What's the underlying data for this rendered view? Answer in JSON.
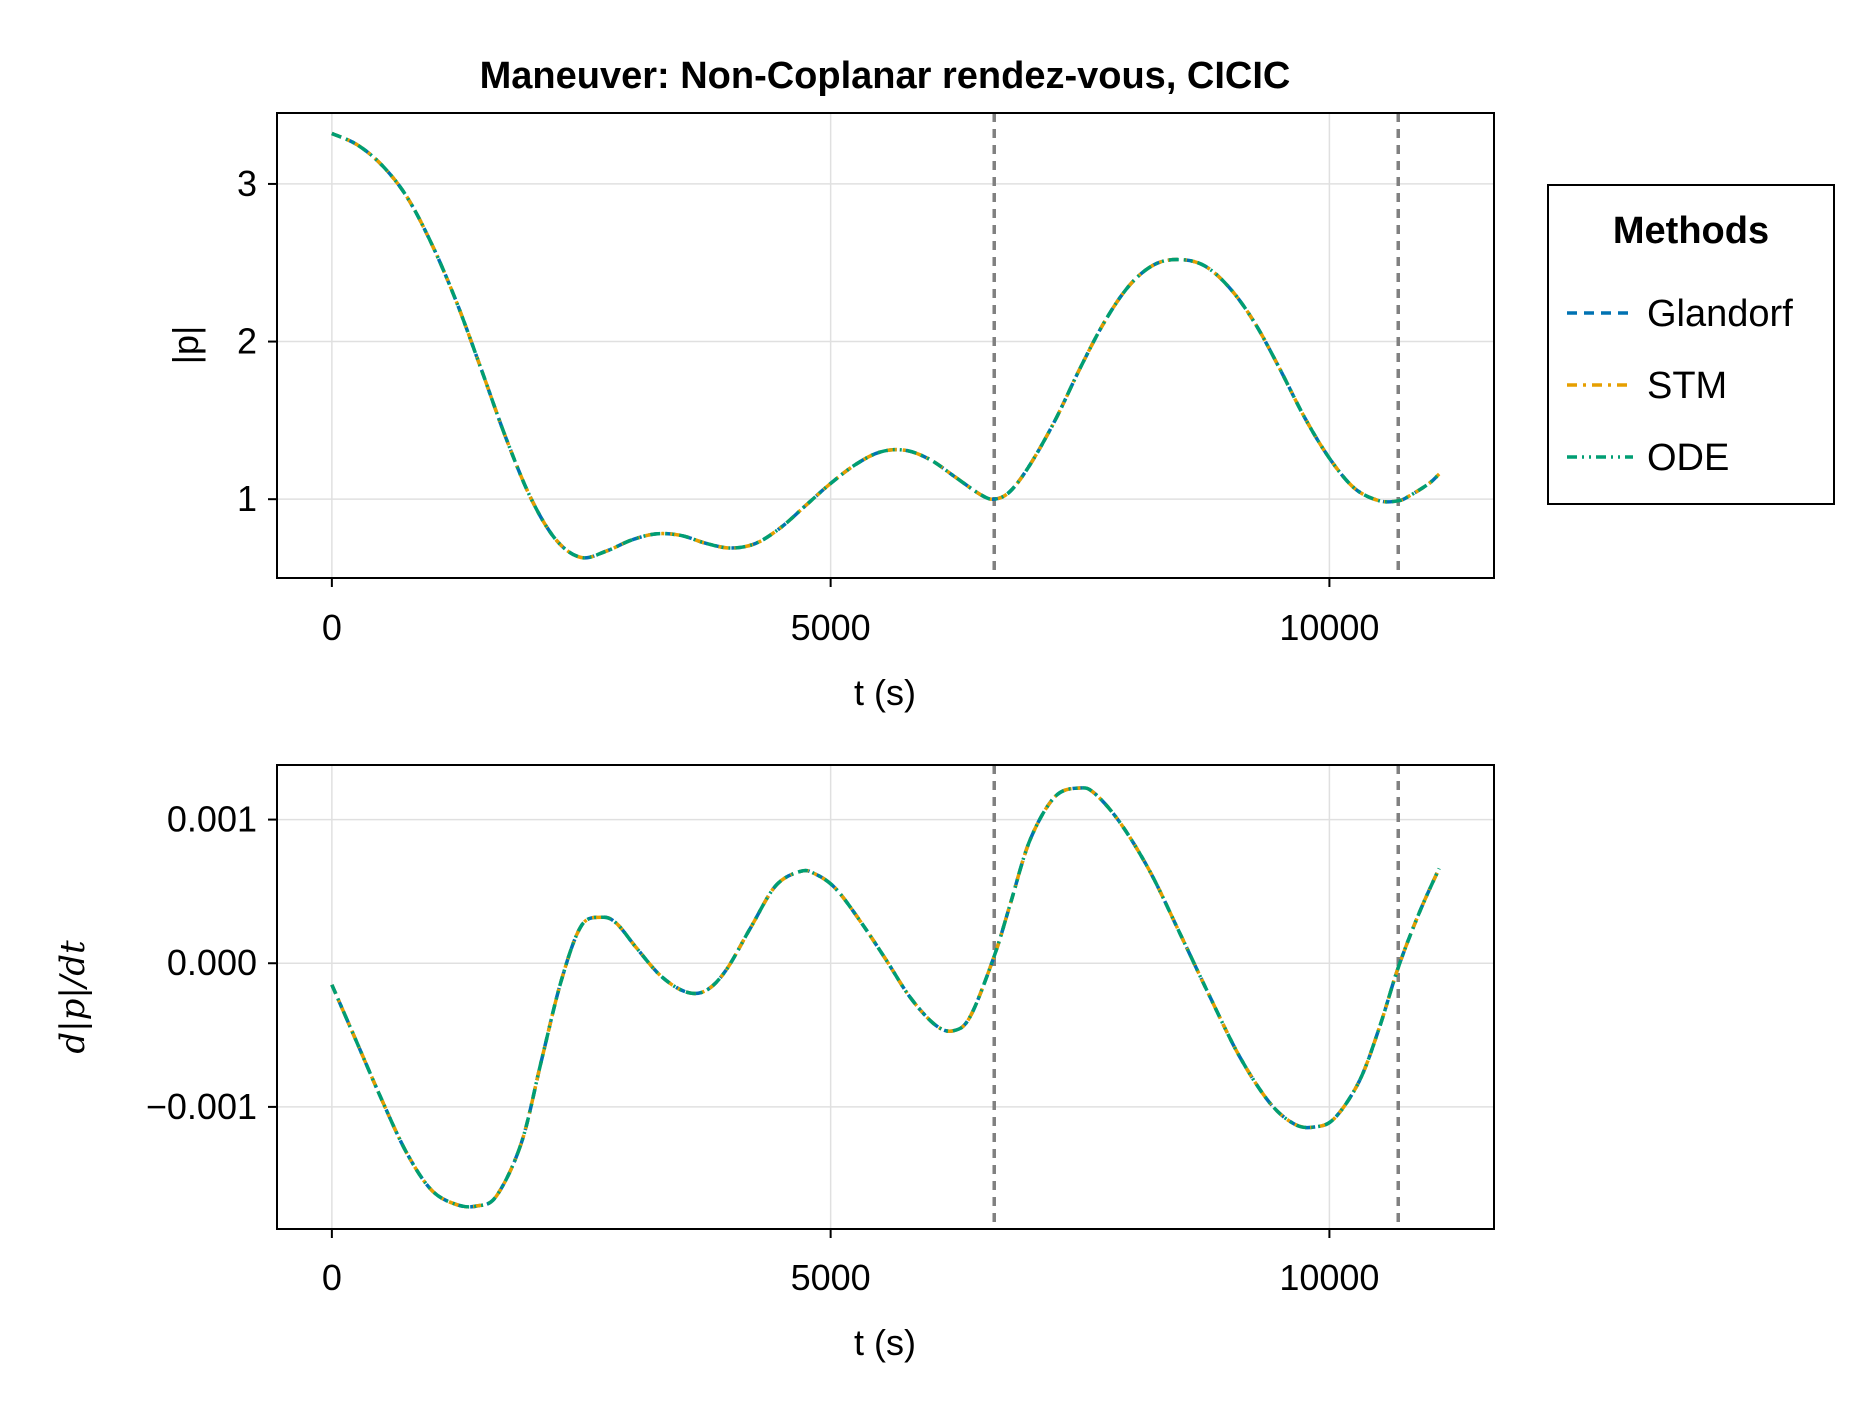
{
  "chart_data": [
    {
      "type": "line",
      "title": "Maneuver: Non-Coplanar rendez-vous, CICIC",
      "xlabel": "t (s)",
      "ylabel": "|p|",
      "xlim": [
        -550,
        11650
      ],
      "ylim": [
        0.5,
        3.45
      ],
      "xticks": [
        0,
        5000,
        10000
      ],
      "xtick_labels": [
        "0",
        "5000",
        "10000"
      ],
      "yticks": [
        1,
        2,
        3
      ],
      "ytick_labels": [
        "1",
        "2",
        "3"
      ],
      "grid": true,
      "vlines": [
        6640,
        10690
      ],
      "x": [
        0,
        250,
        500,
        750,
        1000,
        1250,
        1500,
        1750,
        2000,
        2250,
        2500,
        2750,
        3000,
        3250,
        3500,
        3750,
        4000,
        4250,
        4500,
        4750,
        5000,
        5250,
        5500,
        5750,
        6000,
        6250,
        6500,
        6640,
        6800,
        7000,
        7250,
        7500,
        7750,
        8000,
        8250,
        8500,
        8750,
        9000,
        9250,
        9500,
        9750,
        10000,
        10250,
        10500,
        10690,
        10800,
        11000,
        11100
      ],
      "series": [
        {
          "name": "Glandorf",
          "color": "#0072b2",
          "dash": "10,7",
          "values": [
            3.32,
            3.25,
            3.12,
            2.92,
            2.62,
            2.25,
            1.82,
            1.38,
            1.0,
            0.74,
            0.63,
            0.67,
            0.74,
            0.78,
            0.77,
            0.72,
            0.69,
            0.72,
            0.82,
            0.96,
            1.1,
            1.22,
            1.3,
            1.31,
            1.25,
            1.14,
            1.03,
            1.0,
            1.05,
            1.22,
            1.5,
            1.83,
            2.13,
            2.36,
            2.49,
            2.52,
            2.48,
            2.34,
            2.12,
            1.83,
            1.52,
            1.26,
            1.07,
            0.99,
            0.99,
            1.02,
            1.1,
            1.16
          ]
        },
        {
          "name": "STM",
          "color": "#e69f00",
          "dash": "10,6,3,6",
          "values": [
            3.32,
            3.25,
            3.12,
            2.92,
            2.62,
            2.25,
            1.82,
            1.38,
            1.0,
            0.74,
            0.63,
            0.67,
            0.74,
            0.78,
            0.77,
            0.72,
            0.69,
            0.72,
            0.82,
            0.96,
            1.1,
            1.22,
            1.3,
            1.31,
            1.25,
            1.14,
            1.03,
            1.0,
            1.05,
            1.22,
            1.5,
            1.83,
            2.13,
            2.36,
            2.49,
            2.52,
            2.48,
            2.34,
            2.12,
            1.83,
            1.52,
            1.26,
            1.07,
            0.99,
            0.99,
            1.02,
            1.1,
            1.16
          ]
        },
        {
          "name": "ODE",
          "color": "#009e73",
          "dash": "10,5,2,5,2,5",
          "values": [
            3.32,
            3.25,
            3.12,
            2.92,
            2.62,
            2.25,
            1.82,
            1.38,
            1.0,
            0.74,
            0.63,
            0.67,
            0.74,
            0.78,
            0.77,
            0.72,
            0.69,
            0.72,
            0.82,
            0.96,
            1.1,
            1.22,
            1.3,
            1.31,
            1.25,
            1.14,
            1.03,
            1.0,
            1.05,
            1.22,
            1.5,
            1.83,
            2.13,
            2.36,
            2.49,
            2.52,
            2.48,
            2.34,
            2.12,
            1.83,
            1.52,
            1.26,
            1.07,
            0.99,
            0.99,
            1.02,
            1.1,
            1.16
          ]
        }
      ],
      "legend": {
        "title": "Methods",
        "position": "right",
        "entries": [
          "Glandorf",
          "STM",
          "ODE"
        ]
      }
    },
    {
      "type": "line",
      "title": "",
      "xlabel": "t (s)",
      "ylabel": "d|p|/dt",
      "xlim": [
        -550,
        11650
      ],
      "ylim": [
        -0.00185,
        0.00138
      ],
      "xticks": [
        0,
        5000,
        10000
      ],
      "xtick_labels": [
        "0",
        "5000",
        "10000"
      ],
      "yticks": [
        0.001,
        0.0,
        -0.001
      ],
      "ytick_labels": [
        "0.001",
        "0.000",
        "−0.001"
      ],
      "grid": true,
      "vlines": [
        6640,
        10690
      ],
      "x": [
        0,
        250,
        500,
        750,
        1000,
        1250,
        1450,
        1650,
        1900,
        2100,
        2300,
        2500,
        2700,
        2850,
        3050,
        3300,
        3550,
        3750,
        3950,
        4200,
        4450,
        4700,
        4850,
        5050,
        5300,
        5550,
        5800,
        6050,
        6230,
        6400,
        6640,
        6800,
        7000,
        7250,
        7500,
        7650,
        7900,
        8200,
        8500,
        8800,
        9100,
        9400,
        9650,
        9850,
        10050,
        10300,
        10500,
        10690,
        10900,
        11100
      ],
      "series": [
        {
          "name": "Glandorf",
          "color": "#0072b2",
          "dash": "10,7",
          "values": [
            -0.00015,
            -0.00055,
            -0.00095,
            -0.00132,
            -0.00158,
            -0.00168,
            -0.00169,
            -0.00162,
            -0.00125,
            -0.00068,
            -0.00012,
            0.00026,
            0.00032,
            0.00028,
            0.00011,
            -9e-05,
            -0.0002,
            -0.00019,
            -5e-05,
            0.00025,
            0.00054,
            0.00064,
            0.00062,
            0.00052,
            0.00029,
            3e-05,
            -0.00024,
            -0.00043,
            -0.00047,
            -0.00037,
            5e-05,
            0.00041,
            0.00086,
            0.00116,
            0.00122,
            0.00118,
            0.00098,
            0.00064,
            0.00021,
            -0.00023,
            -0.00065,
            -0.00097,
            -0.00112,
            -0.00114,
            -0.00108,
            -0.00082,
            -0.00045,
            -3e-05,
            0.00035,
            0.00066
          ]
        },
        {
          "name": "STM",
          "color": "#e69f00",
          "dash": "10,6,3,6",
          "values": [
            -0.00015,
            -0.00055,
            -0.00095,
            -0.00132,
            -0.00158,
            -0.00168,
            -0.00169,
            -0.00162,
            -0.00125,
            -0.00068,
            -0.00012,
            0.00026,
            0.00032,
            0.00028,
            0.00011,
            -9e-05,
            -0.0002,
            -0.00019,
            -5e-05,
            0.00025,
            0.00054,
            0.00064,
            0.00062,
            0.00052,
            0.00029,
            3e-05,
            -0.00024,
            -0.00043,
            -0.00047,
            -0.00037,
            5e-05,
            0.00041,
            0.00086,
            0.00116,
            0.00122,
            0.00118,
            0.00098,
            0.00064,
            0.00021,
            -0.00023,
            -0.00065,
            -0.00097,
            -0.00112,
            -0.00114,
            -0.00108,
            -0.00082,
            -0.00045,
            -3e-05,
            0.00035,
            0.00066
          ]
        },
        {
          "name": "ODE",
          "color": "#009e73",
          "dash": "10,5,2,5,2,5",
          "values": [
            -0.00015,
            -0.00055,
            -0.00095,
            -0.00132,
            -0.00158,
            -0.00168,
            -0.00169,
            -0.00162,
            -0.00125,
            -0.00068,
            -0.00012,
            0.00026,
            0.00032,
            0.00028,
            0.00011,
            -9e-05,
            -0.0002,
            -0.00019,
            -5e-05,
            0.00025,
            0.00054,
            0.00064,
            0.00062,
            0.00052,
            0.00029,
            3e-05,
            -0.00024,
            -0.00043,
            -0.00047,
            -0.00037,
            5e-05,
            0.00041,
            0.00086,
            0.00116,
            0.00122,
            0.00118,
            0.00098,
            0.00064,
            0.00021,
            -0.00023,
            -0.00065,
            -0.00097,
            -0.00112,
            -0.00114,
            -0.00108,
            -0.00082,
            -0.00045,
            -3e-05,
            0.00035,
            0.00066
          ]
        }
      ]
    }
  ],
  "colors": {
    "vline": "#808080",
    "grid": "#e0e0e0",
    "frame": "#000000"
  }
}
